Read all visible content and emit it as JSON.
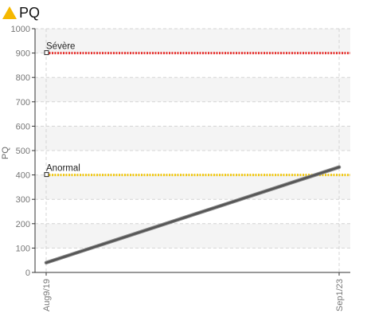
{
  "header": {
    "title": "PQ",
    "icon": "warning-triangle-icon",
    "icon_color": "#f5b800"
  },
  "chart_data": {
    "type": "line",
    "title": "PQ",
    "xlabel": "",
    "ylabel": "PQ",
    "x_categories": [
      "Aug9/19",
      "Sep1/23"
    ],
    "ylim": [
      0,
      1000
    ],
    "yticks": [
      0,
      100,
      200,
      300,
      400,
      500,
      600,
      700,
      800,
      900,
      1000
    ],
    "grid": true,
    "series": [
      {
        "values": [
          40,
          432
        ],
        "color": "#555555"
      }
    ],
    "thresholds": [
      {
        "name": "Sévère",
        "value": 900,
        "color": "#e8322f"
      },
      {
        "name": "Anormal",
        "value": 400,
        "color": "#f2c80f"
      }
    ]
  }
}
